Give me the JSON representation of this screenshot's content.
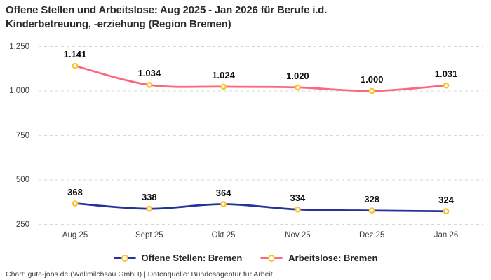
{
  "title": {
    "line1": "Offene Stellen und Arbeitslose: Aug 2025 - Jan 2026 für Berufe i.d.",
    "line2": "Kinderbetreuung, -erziehung (Region Bremen)"
  },
  "footer": {
    "text": "Chart: gute-jobs.de (Wollmilchsau GmbH) | Datenquelle: Bundesagentur für Arbeit"
  },
  "colors": {
    "grid": "#d7d7d7",
    "marker_ring": "#fdc330",
    "marker_fill": "#ffffff",
    "tick_text": "#3d3d3d",
    "label_text": "#0d0d0d"
  },
  "chart_data": {
    "type": "line",
    "title": "Offene Stellen und Arbeitslose: Aug 2025 - Jan 2026 für Berufe i.d. Kinderbetreuung, -erziehung (Region Bremen)",
    "categories": [
      "Aug 25",
      "Sept 25",
      "Okt 25",
      "Nov 25",
      "Dez 25",
      "Jan 26"
    ],
    "series": [
      {
        "name": "Offene Stellen: Bremen",
        "values": [
          368,
          338,
          364,
          334,
          328,
          324
        ],
        "labels": [
          "368",
          "338",
          "364",
          "334",
          "328",
          "324"
        ],
        "color": "#26339c"
      },
      {
        "name": "Arbeitslose: Bremen",
        "values": [
          1141,
          1034,
          1024,
          1020,
          1000,
          1031
        ],
        "labels": [
          "1.141",
          "1.034",
          "1.024",
          "1.020",
          "1.000",
          "1.031"
        ],
        "color": "#f9687f"
      }
    ],
    "y_ticks": {
      "values": [
        250,
        500,
        750,
        1000,
        1250
      ],
      "labels": [
        "250",
        "500",
        "750",
        "1.000",
        "1.250"
      ]
    },
    "ylim": [
      250,
      1250
    ],
    "xlabel": "",
    "ylabel": "",
    "grid": "horizontal-dashed",
    "legend_position": "bottom"
  }
}
